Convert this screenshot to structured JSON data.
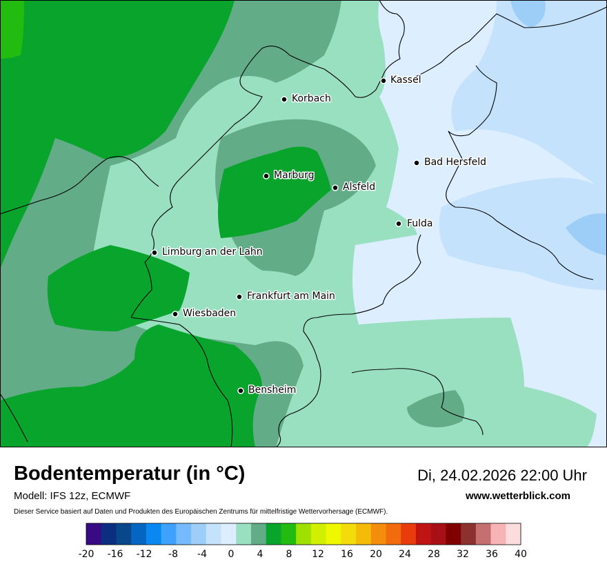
{
  "map": {
    "cities": [
      {
        "name": "Kassel"
      },
      {
        "name": "Korbach"
      },
      {
        "name": "Bad Hersfeld"
      },
      {
        "name": "Marburg"
      },
      {
        "name": "Alsfeld"
      },
      {
        "name": "Fulda"
      },
      {
        "name": "Limburg an der Lahn"
      },
      {
        "name": "Frankfurt am Main"
      },
      {
        "name": "Wiesbaden"
      },
      {
        "name": "Bensheim"
      }
    ]
  },
  "footer": {
    "title": "Bodentemperatur (in °C)",
    "datetime": "Di, 24.02.2026 22:00 Uhr",
    "model": "Modell: IFS 12z, ECMWF",
    "website": "www.wetterblick.com",
    "disclaimer": "Dieser Service basiert auf Daten und Produkten des Europäischen Zentrums für mittelfristige Wettervorhersage (ECMWF)."
  },
  "legend": {
    "colors": [
      "#380a84",
      "#0c2e80",
      "#08488a",
      "#0466c0",
      "#0888f0",
      "#3ea2fc",
      "#74bafc",
      "#9ccef8",
      "#c4e2fc",
      "#dceeff",
      "#98e0c0",
      "#62ac88",
      "#08a42c",
      "#22bc10",
      "#9ee000",
      "#d0f000",
      "#f0f800",
      "#f4dc0c",
      "#f4bc08",
      "#f48c0c",
      "#f06c0c",
      "#e83c0c",
      "#c01414",
      "#a81018",
      "#800000",
      "#8c3030",
      "#c47070",
      "#f8b4b4",
      "#fcdcdc"
    ],
    "ticks": [
      "-20",
      "-16",
      "-12",
      "-8",
      "-4",
      "0",
      "4",
      "8",
      "12",
      "16",
      "20",
      "24",
      "28",
      "32",
      "36",
      "40"
    ]
  }
}
